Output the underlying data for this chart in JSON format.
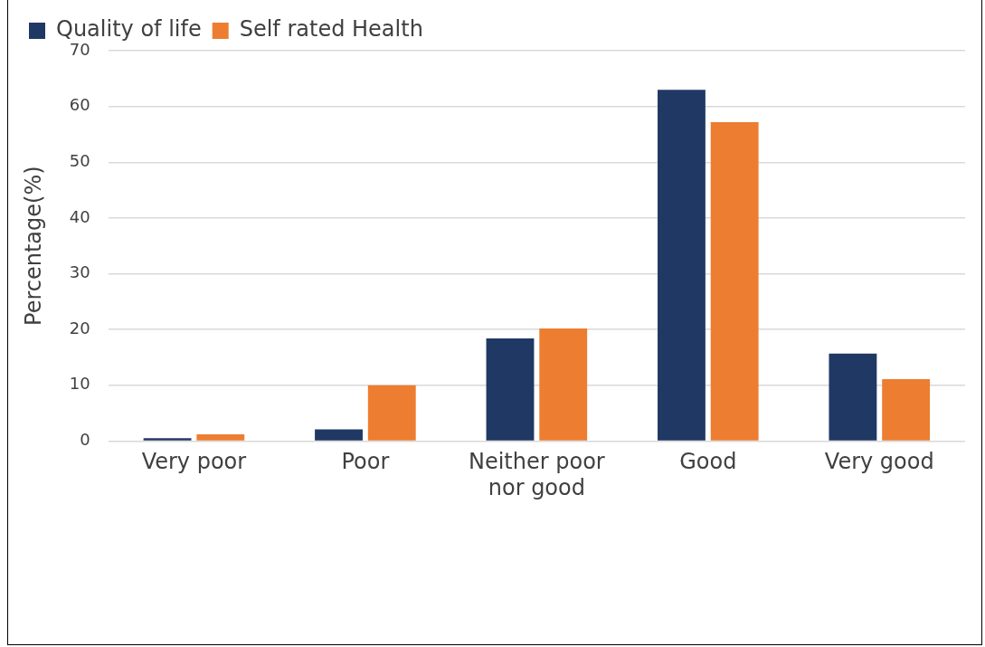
{
  "chart_data": {
    "type": "bar",
    "ylabel": "Percentage(%)",
    "categories": [
      "Very poor",
      "Poor",
      "Neither poor nor good",
      "Good",
      "Very good"
    ],
    "series": [
      {
        "name": "Quality of life",
        "color": "#203864",
        "values": [
          0.5,
          2.1,
          18.4,
          63.0,
          15.7
        ]
      },
      {
        "name": "Self rated Health",
        "color": "#ed7d31",
        "values": [
          1.2,
          10.0,
          20.2,
          57.2,
          11.1
        ]
      }
    ],
    "ylim": [
      0,
      70
    ],
    "yticks": [
      0,
      10,
      20,
      30,
      40,
      50,
      60,
      70
    ],
    "grid": "y",
    "legend": "top left"
  }
}
